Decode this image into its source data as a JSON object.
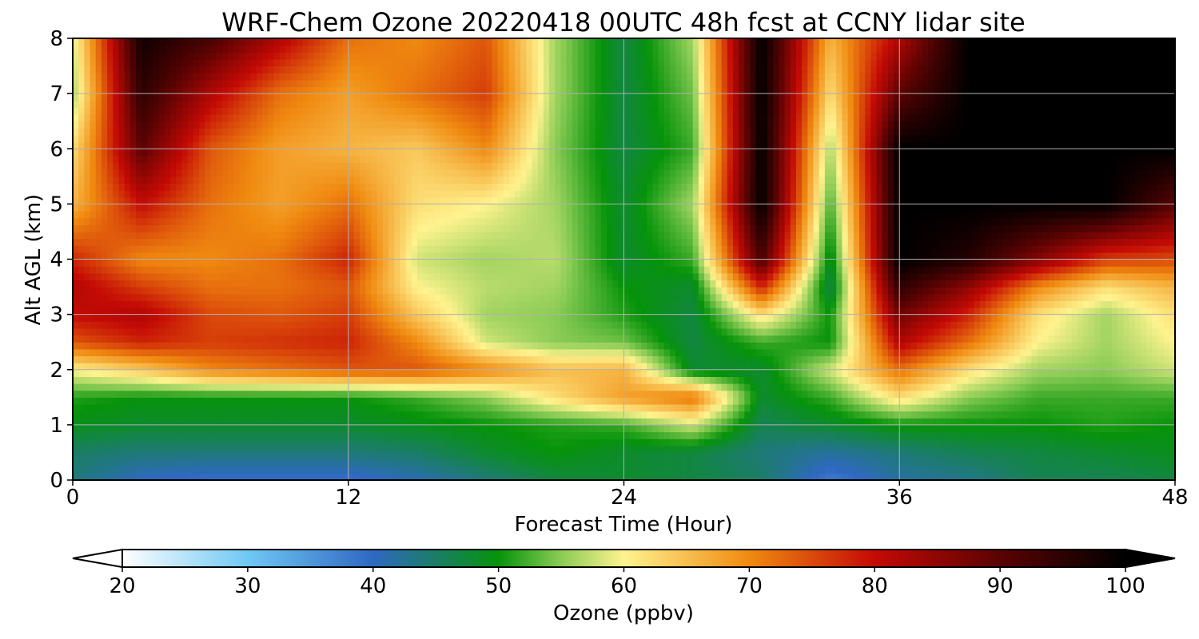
{
  "chart_data": {
    "type": "heatmap",
    "title": "WRF-Chem Ozone  20220418 00UTC 48h fcst at CCNY lidar site",
    "xlabel": "Forecast Time (Hour)",
    "ylabel": "Alt AGL (km)",
    "xlim": [
      0,
      48
    ],
    "ylim": [
      0,
      8
    ],
    "x_ticks": [
      "0",
      "12",
      "24",
      "36",
      "48"
    ],
    "y_ticks": [
      "0",
      "1",
      "2",
      "3",
      "4",
      "5",
      "6",
      "7",
      "8"
    ],
    "grid": true,
    "x": [
      0,
      3,
      6,
      9,
      12,
      15,
      18,
      21,
      24,
      27,
      30,
      33,
      36,
      39,
      42,
      45,
      48
    ],
    "y": [
      0,
      0.5,
      1,
      1.5,
      2,
      2.5,
      3,
      3.5,
      4,
      5,
      6,
      7,
      8
    ],
    "z": [
      [
        44,
        40,
        39,
        39,
        39,
        41,
        44,
        47,
        48,
        47,
        45,
        38,
        42,
        43,
        46,
        46,
        47
      ],
      [
        45,
        44,
        44,
        44,
        44,
        45,
        48,
        50,
        48,
        47,
        44,
        42,
        44,
        46,
        47,
        48,
        49
      ],
      [
        49,
        48,
        48,
        48,
        48,
        49,
        50,
        51,
        52,
        58,
        46,
        48,
        50,
        50,
        50,
        51,
        50
      ],
      [
        51,
        50,
        50,
        50,
        50,
        52,
        55,
        62,
        68,
        72,
        48,
        52,
        62,
        55,
        52,
        52,
        52
      ],
      [
        60,
        64,
        70,
        72,
        74,
        74,
        70,
        65,
        66,
        48,
        48,
        58,
        72,
        62,
        56,
        55,
        58
      ],
      [
        74,
        78,
        76,
        77,
        78,
        70,
        58,
        55,
        54,
        47,
        52,
        50,
        82,
        72,
        60,
        56,
        60
      ],
      [
        80,
        82,
        75,
        74,
        76,
        64,
        56,
        55,
        51,
        47,
        62,
        50,
        88,
        78,
        62,
        56,
        62
      ],
      [
        82,
        76,
        72,
        72,
        74,
        60,
        57,
        56,
        50,
        48,
        78,
        46,
        95,
        85,
        70,
        62,
        66
      ],
      [
        78,
        70,
        70,
        72,
        78,
        58,
        56,
        57,
        48,
        52,
        92,
        48,
        100,
        96,
        86,
        76,
        75
      ],
      [
        66,
        80,
        72,
        68,
        72,
        62,
        60,
        56,
        48,
        56,
        100,
        52,
        100,
        100,
        100,
        100,
        90
      ],
      [
        62,
        90,
        74,
        68,
        66,
        64,
        70,
        55,
        47,
        52,
        100,
        56,
        100,
        100,
        100,
        100,
        100
      ],
      [
        56,
        95,
        82,
        72,
        68,
        72,
        76,
        56,
        47,
        54,
        100,
        62,
        90,
        100,
        100,
        100,
        100
      ],
      [
        58,
        98,
        92,
        82,
        72,
        70,
        74,
        56,
        47,
        56,
        100,
        66,
        82,
        100,
        100,
        100,
        100
      ]
    ],
    "colorbar": {
      "label": "Ozone  (ppbv)",
      "min": 20,
      "max": 100,
      "extend": "both",
      "ticks": [
        "20",
        "30",
        "40",
        "50",
        "60",
        "70",
        "80",
        "90",
        "100"
      ],
      "stops": [
        [
          20,
          "#ffffff"
        ],
        [
          30,
          "#6fc8f4"
        ],
        [
          40,
          "#2f68c2"
        ],
        [
          50,
          "#06930a"
        ],
        [
          55,
          "#8bcc55"
        ],
        [
          60,
          "#fff38f"
        ],
        [
          70,
          "#f08a10"
        ],
        [
          80,
          "#c40a05"
        ],
        [
          90,
          "#5a0303"
        ],
        [
          100,
          "#000000"
        ]
      ]
    }
  }
}
